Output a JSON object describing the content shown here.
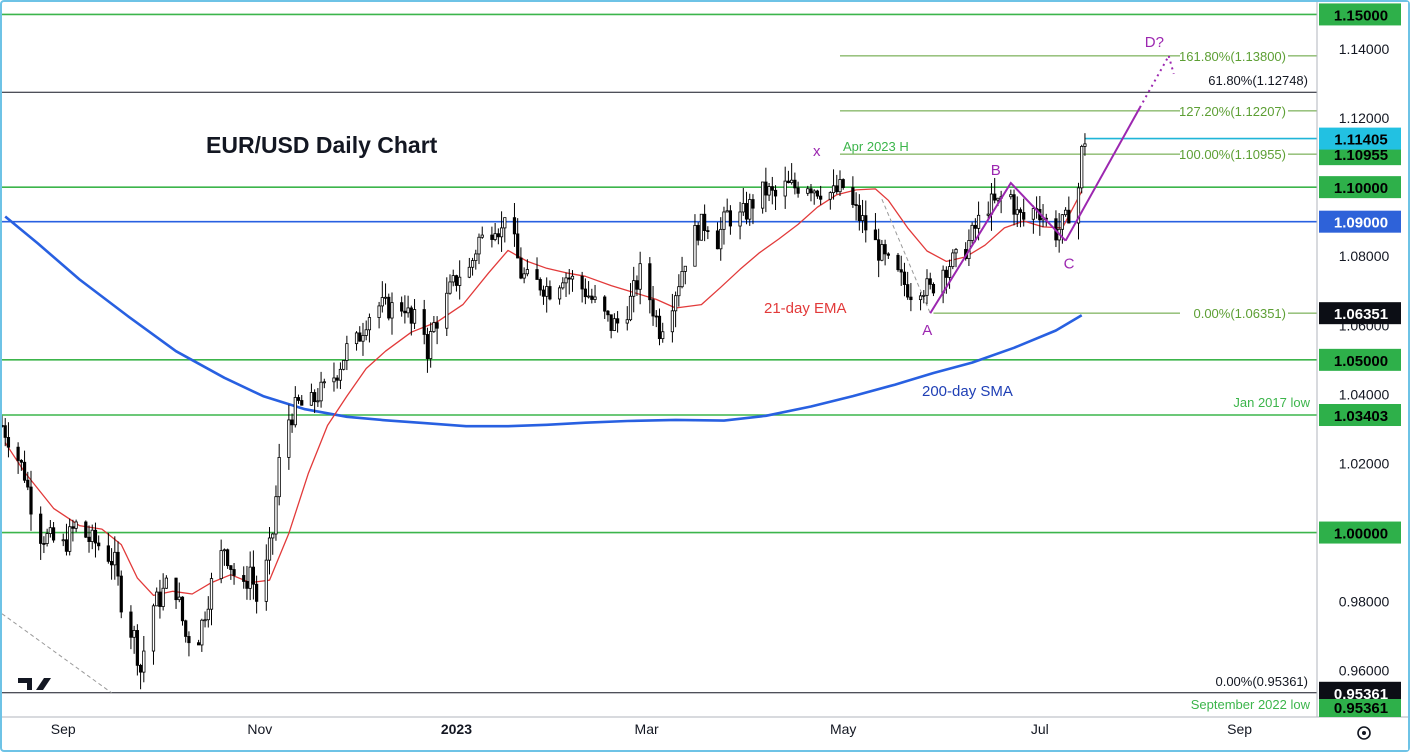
{
  "chart_data": {
    "type": "candlestick",
    "title": "EUR/USD Daily Chart",
    "y_axis": {
      "range": [
        0.9466,
        1.1536
      ],
      "ticks": [
        "1.14000",
        "1.12000",
        "1.08000",
        "1.06000",
        "1.04000",
        "1.02000",
        "0.98000",
        "0.96000"
      ],
      "tick_values": [
        1.14,
        1.12,
        1.08,
        1.06,
        1.04,
        1.02,
        0.98,
        0.96
      ]
    },
    "x_axis": {
      "ticks": [
        {
          "label": "Sep",
          "day": 0
        },
        {
          "label": "Nov",
          "day": 61
        },
        {
          "label": "2023",
          "day": 122
        },
        {
          "label": "Mar",
          "day": 181
        },
        {
          "label": "May",
          "day": 242
        },
        {
          "label": "Jul",
          "day": 303
        },
        {
          "label": "Sep",
          "day": 365
        }
      ],
      "day_range": [
        -19,
        389
      ]
    },
    "horizontal_levels": [
      {
        "value": 1.15,
        "label": "1.15000"
      },
      {
        "value": 1.1,
        "label": "1.10000"
      },
      {
        "value": 1.05,
        "label": "1.05000"
      },
      {
        "value": 1.03403,
        "label": "1.03403",
        "note": "Jan 2017 low"
      },
      {
        "value": 1.0,
        "label": "1.00000"
      }
    ],
    "blue_level": {
      "value": 1.09,
      "label": "1.09000"
    },
    "black_levels": [
      {
        "value": 1.12748,
        "label": "61.80%(1.12748)"
      },
      {
        "value": 0.95361,
        "label": "0.00%(0.95361)",
        "note": "September 2022 low"
      }
    ],
    "fib_levels": [
      {
        "value": 1.138,
        "label": "161.80%(1.13800)"
      },
      {
        "value": 1.12207,
        "label": "127.20%(1.12207)"
      },
      {
        "value": 1.10955,
        "label": "100.00%(1.10955)",
        "badge": "1.10955"
      },
      {
        "value": 1.06351,
        "label": "0.00%(1.06351)",
        "badge": "1.06351"
      }
    ],
    "price_badges": {
      "last": "1.11405",
      "sept_low": "0.95361",
      "bottom": "0.95361"
    },
    "last_price": 1.11405,
    "annotations": {
      "ema": "21-day EMA",
      "sma": "200-day SMA",
      "apr_high": "Apr 2023 H",
      "x": "x",
      "A": "A",
      "B": "B",
      "C": "C",
      "D": "D?"
    },
    "pattern": {
      "A": {
        "day": 269,
        "price": 1.0635
      },
      "B": {
        "day": 294,
        "price": 1.1012
      },
      "C": {
        "day": 311,
        "price": 1.0845
      },
      "D": {
        "day": 343,
        "price": 1.138
      }
    },
    "sma200": [
      [
        -18,
        1.0915
      ],
      [
        -8,
        1.0838
      ],
      [
        5,
        1.0733
      ],
      [
        20,
        1.0627
      ],
      [
        35,
        1.0525
      ],
      [
        50,
        1.0448
      ],
      [
        62,
        1.0395
      ],
      [
        75,
        1.0357
      ],
      [
        88,
        1.0335
      ],
      [
        100,
        1.0325
      ],
      [
        112,
        1.0317
      ],
      [
        125,
        1.0308
      ],
      [
        138,
        1.0308
      ],
      [
        150,
        1.0312
      ],
      [
        162,
        1.0318
      ],
      [
        175,
        1.0323
      ],
      [
        190,
        1.0326
      ],
      [
        205,
        1.0324
      ],
      [
        218,
        1.0338
      ],
      [
        232,
        1.0365
      ],
      [
        245,
        1.0395
      ],
      [
        258,
        1.0428
      ],
      [
        270,
        1.0462
      ],
      [
        282,
        1.0492
      ],
      [
        295,
        1.0535
      ],
      [
        308,
        1.0585
      ],
      [
        316,
        1.0629
      ]
    ],
    "ema21": [
      [
        -18,
        1.026
      ],
      [
        -12,
        1.0175
      ],
      [
        -3,
        1.007
      ],
      [
        5,
        1.002
      ],
      [
        12,
        1.001
      ],
      [
        18,
        0.9965
      ],
      [
        23,
        0.9868
      ],
      [
        28,
        0.9818
      ],
      [
        34,
        0.983
      ],
      [
        40,
        0.9822
      ],
      [
        46,
        0.9855
      ],
      [
        52,
        0.9878
      ],
      [
        58,
        0.9855
      ],
      [
        64,
        0.9862
      ],
      [
        70,
        0.9998
      ],
      [
        76,
        1.017
      ],
      [
        82,
        1.031
      ],
      [
        88,
        1.0395
      ],
      [
        94,
        1.0475
      ],
      [
        100,
        1.0525
      ],
      [
        108,
        1.058
      ],
      [
        116,
        1.061
      ],
      [
        124,
        1.066
      ],
      [
        132,
        1.0752
      ],
      [
        138,
        1.0817
      ],
      [
        144,
        1.0785
      ],
      [
        150,
        1.0765
      ],
      [
        156,
        1.0752
      ],
      [
        162,
        1.0742
      ],
      [
        170,
        1.0715
      ],
      [
        176,
        1.0698
      ],
      [
        184,
        1.0675
      ],
      [
        190,
        1.065
      ],
      [
        198,
        1.066
      ],
      [
        204,
        1.071
      ],
      [
        210,
        1.0762
      ],
      [
        216,
        1.081
      ],
      [
        222,
        1.085
      ],
      [
        228,
        1.0892
      ],
      [
        234,
        1.0942
      ],
      [
        240,
        1.0978
      ],
      [
        246,
        1.0992
      ],
      [
        252,
        1.0995
      ],
      [
        256,
        1.0962
      ],
      [
        262,
        1.0882
      ],
      [
        268,
        1.0815
      ],
      [
        274,
        1.0785
      ],
      [
        280,
        1.0798
      ],
      [
        286,
        1.0832
      ],
      [
        292,
        1.0882
      ],
      [
        298,
        1.0902
      ],
      [
        304,
        1.0885
      ],
      [
        310,
        1.0882
      ],
      [
        316,
        1.0988
      ]
    ],
    "price_path": [
      [
        -19,
        1.031
      ],
      [
        -16,
        1.026
      ],
      [
        -12,
        1.017
      ],
      [
        -8,
        1.0
      ],
      [
        -4,
        0.998
      ],
      [
        0,
        0.996
      ],
      [
        4,
        1.002
      ],
      [
        8,
        0.998
      ],
      [
        12,
        0.996
      ],
      [
        16,
        0.991
      ],
      [
        19,
        0.975
      ],
      [
        22,
        0.97
      ],
      [
        24,
        0.96
      ],
      [
        27,
        0.978
      ],
      [
        30,
        0.981
      ],
      [
        34,
        0.988
      ],
      [
        38,
        0.97
      ],
      [
        42,
        0.97
      ],
      [
        46,
        0.985
      ],
      [
        50,
        0.996
      ],
      [
        53,
        0.988
      ],
      [
        56,
        0.983
      ],
      [
        58,
        0.99
      ],
      [
        61,
        0.976
      ],
      [
        63,
        0.99
      ],
      [
        65,
        1.0
      ],
      [
        67,
        1.02
      ],
      [
        70,
        1.033
      ],
      [
        73,
        1.037
      ],
      [
        76,
        1.036
      ],
      [
        79,
        1.04
      ],
      [
        82,
        1.042
      ],
      [
        85,
        1.047
      ],
      [
        88,
        1.053
      ],
      [
        91,
        1.055
      ],
      [
        94,
        1.062
      ],
      [
        97,
        1.066
      ],
      [
        100,
        1.065
      ],
      [
        103,
        1.065
      ],
      [
        106,
        1.066
      ],
      [
        108,
        1.06
      ],
      [
        111,
        1.064
      ],
      [
        113,
        1.053
      ],
      [
        115,
        1.06
      ],
      [
        118,
        1.065
      ],
      [
        120,
        1.07
      ],
      [
        123,
        1.075
      ],
      [
        126,
        1.076
      ],
      [
        129,
        1.085
      ],
      [
        131,
        1.085
      ],
      [
        134,
        1.09
      ],
      [
        136,
        1.087
      ],
      [
        138,
        1.1
      ],
      [
        140,
        1.083
      ],
      [
        142,
        1.075
      ],
      [
        145,
        1.072
      ],
      [
        148,
        1.072
      ],
      [
        152,
        1.07
      ],
      [
        155,
        1.075
      ],
      [
        158,
        1.073
      ],
      [
        162,
        1.07
      ],
      [
        166,
        1.065
      ],
      [
        170,
        1.06
      ],
      [
        173,
        1.061
      ],
      [
        176,
        1.067
      ],
      [
        179,
        1.075
      ],
      [
        182,
        1.068
      ],
      [
        185,
        1.059
      ],
      [
        188,
        1.065
      ],
      [
        191,
        1.073
      ],
      [
        194,
        1.083
      ],
      [
        197,
        1.088
      ],
      [
        200,
        1.09
      ],
      [
        203,
        1.085
      ],
      [
        206,
        1.092
      ],
      [
        209,
        1.09
      ],
      [
        212,
        1.093
      ],
      [
        215,
        1.097
      ],
      [
        218,
        1.099
      ],
      [
        221,
        1.097
      ],
      [
        224,
        1.1
      ],
      [
        227,
        1.1
      ],
      [
        230,
        1.102
      ],
      [
        233,
        1.1
      ],
      [
        236,
        1.099
      ],
      [
        239,
        1.098
      ],
      [
        242,
        1.1
      ],
      [
        245,
        1.094
      ],
      [
        248,
        1.09
      ],
      [
        251,
        1.085
      ],
      [
        254,
        1.08
      ],
      [
        257,
        1.076
      ],
      [
        260,
        1.073
      ],
      [
        263,
        1.07
      ],
      [
        266,
        1.072
      ],
      [
        269,
        1.07
      ],
      [
        272,
        1.076
      ],
      [
        275,
        1.078
      ],
      [
        278,
        1.079
      ],
      [
        281,
        1.084
      ],
      [
        284,
        1.09
      ],
      [
        287,
        1.095
      ],
      [
        290,
        1.095
      ],
      [
        293,
        1.1
      ],
      [
        296,
        1.092
      ],
      [
        299,
        1.09
      ],
      [
        302,
        1.095
      ],
      [
        305,
        1.09
      ],
      [
        308,
        1.087
      ],
      [
        311,
        1.09
      ],
      [
        313,
        1.096
      ],
      [
        315,
        1.1
      ],
      [
        316,
        1.11
      ],
      [
        317,
        1.114
      ]
    ]
  }
}
